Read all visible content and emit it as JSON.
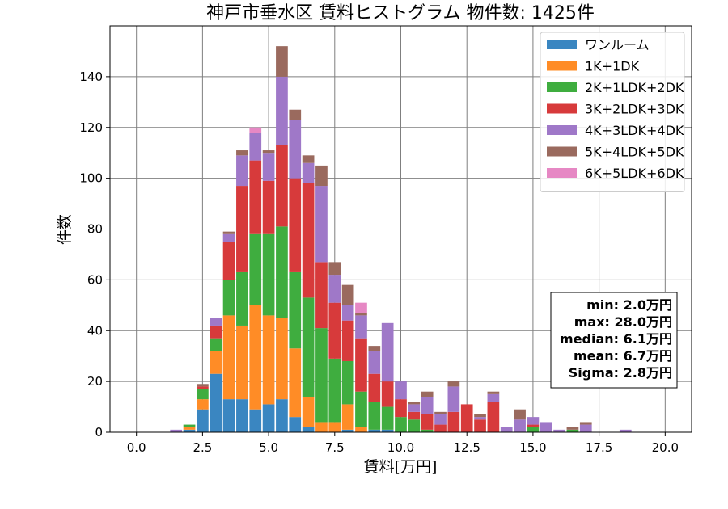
{
  "chart_data": {
    "type": "bar",
    "stacked": true,
    "title": "神戸市垂水区 賃料ヒストグラム 物件数: 1425件",
    "xlabel": "賃料[万円]",
    "ylabel": "件数",
    "xlim": [
      -1,
      21
    ],
    "ylim": [
      0,
      160
    ],
    "xticks": [
      0.0,
      2.5,
      5.0,
      7.5,
      10.0,
      12.5,
      15.0,
      17.5,
      20.0
    ],
    "xtick_labels": [
      "0.0",
      "2.5",
      "5.0",
      "7.5",
      "10.0",
      "12.5",
      "15.0",
      "17.5",
      "20.0"
    ],
    "yticks": [
      0,
      20,
      40,
      60,
      80,
      100,
      120,
      140
    ],
    "ytick_labels": [
      "0",
      "20",
      "40",
      "60",
      "80",
      "100",
      "120",
      "140"
    ],
    "bin_width": 0.5,
    "grid": true,
    "legend_position": "top-right",
    "x": [
      1.5,
      2.0,
      2.5,
      3.0,
      3.5,
      4.0,
      4.5,
      5.0,
      5.5,
      6.0,
      6.5,
      7.0,
      7.5,
      8.0,
      8.5,
      9.0,
      9.5,
      10.0,
      10.5,
      11.0,
      11.5,
      12.0,
      12.5,
      13.0,
      13.5,
      14.0,
      14.5,
      15.0,
      15.5,
      16.0,
      16.5,
      17.0,
      17.5,
      18.0,
      18.5
    ],
    "series": [
      {
        "name": "ワンルーム",
        "color": "#3a86c1",
        "values": [
          0,
          1,
          9,
          23,
          13,
          13,
          9,
          11,
          13,
          6,
          2,
          0,
          0,
          1,
          0,
          1,
          1,
          0,
          0,
          0,
          0,
          0,
          0,
          0,
          0,
          0,
          0,
          0,
          0,
          0,
          0,
          0,
          0,
          0,
          0
        ]
      },
      {
        "name": "1K+1DK",
        "color": "#ff8c26",
        "values": [
          0,
          1,
          4,
          9,
          33,
          29,
          41,
          35,
          32,
          27,
          12,
          4,
          4,
          10,
          2,
          0,
          0,
          0,
          0,
          0,
          0,
          0,
          0,
          0,
          0,
          0,
          0,
          0,
          0,
          0,
          0,
          0,
          0,
          0,
          0
        ]
      },
      {
        "name": "2K+1LDK+2DK",
        "color": "#3fad3f",
        "values": [
          0,
          1,
          4,
          5,
          14,
          21,
          28,
          32,
          36,
          30,
          39,
          37,
          25,
          17,
          14,
          11,
          9,
          6,
          5,
          1,
          0,
          0,
          0,
          0,
          0,
          0,
          0,
          2,
          0,
          0,
          1,
          0,
          0,
          0,
          0
        ]
      },
      {
        "name": "3K+2LDK+3DK",
        "color": "#d73a3b",
        "values": [
          0,
          0,
          1,
          5,
          15,
          34,
          29,
          21,
          32,
          37,
          45,
          26,
          22,
          16,
          21,
          11,
          10,
          7,
          3,
          6,
          3,
          8,
          11,
          5,
          12,
          0,
          0,
          1,
          0,
          0,
          0,
          0,
          0,
          0,
          0
        ]
      },
      {
        "name": "4K+3LDK+4DK",
        "color": "#9f78c8",
        "values": [
          1,
          0,
          0,
          3,
          3,
          12,
          11,
          11,
          27,
          23,
          8,
          30,
          11,
          6,
          9,
          9,
          23,
          7,
          3,
          7,
          4,
          10,
          0,
          1,
          3,
          2,
          5,
          3,
          4,
          1,
          0,
          3,
          0,
          0,
          1
        ]
      },
      {
        "name": "5K+4LDK+5DK",
        "color": "#9a6a5e",
        "values": [
          0,
          0,
          1,
          0,
          1,
          2,
          0,
          1,
          12,
          4,
          3,
          8,
          5,
          8,
          1,
          2,
          0,
          0,
          1,
          2,
          1,
          2,
          0,
          1,
          1,
          0,
          4,
          0,
          0,
          0,
          1,
          1,
          0,
          0,
          0
        ]
      },
      {
        "name": "6K+5LDK+6DK",
        "color": "#e688c4",
        "values": [
          0,
          0,
          0,
          0,
          0,
          0,
          2,
          0,
          0,
          0,
          0,
          0,
          0,
          0,
          4,
          0,
          0,
          0,
          0,
          0,
          0,
          0,
          0,
          0,
          0,
          0,
          0,
          0,
          0,
          0,
          0,
          0,
          0,
          0,
          0
        ]
      }
    ],
    "stats": [
      "min: 2.0万円",
      "max: 28.0万円",
      "median: 6.1万円",
      "mean: 6.7万円",
      "Sigma: 2.8万円"
    ]
  }
}
